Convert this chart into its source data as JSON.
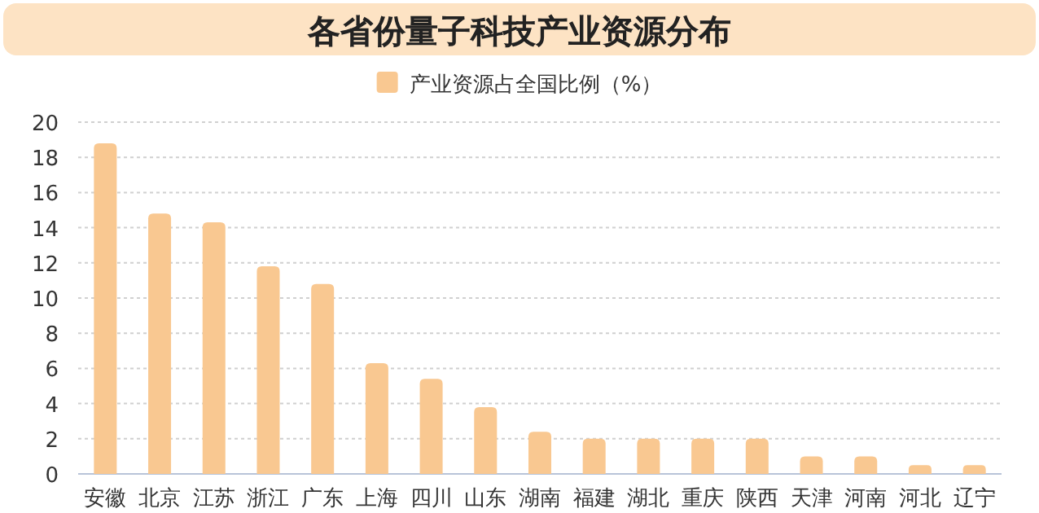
{
  "chart_data": {
    "type": "bar",
    "title": "各省份量子科技产业资源分布",
    "categories": [
      "安徽",
      "北京",
      "江苏",
      "浙江",
      "广东",
      "上海",
      "四川",
      "山东",
      "湖南",
      "福建",
      "湖北",
      "重庆",
      "陕西",
      "天津",
      "河南",
      "河北",
      "辽宁"
    ],
    "series": [
      {
        "name": "产业资源占全国比例（%）",
        "color": "#f9c891",
        "values": [
          18.8,
          14.8,
          14.3,
          11.8,
          10.8,
          6.3,
          5.4,
          3.8,
          2.4,
          2,
          2,
          2,
          2,
          1,
          1,
          0.5,
          0.5
        ]
      }
    ],
    "ylim": [
      0,
      20
    ],
    "yticks": [
      0,
      2,
      4,
      6,
      8,
      10,
      12,
      14,
      16,
      18,
      20
    ],
    "grid": "y",
    "legend": "top"
  }
}
